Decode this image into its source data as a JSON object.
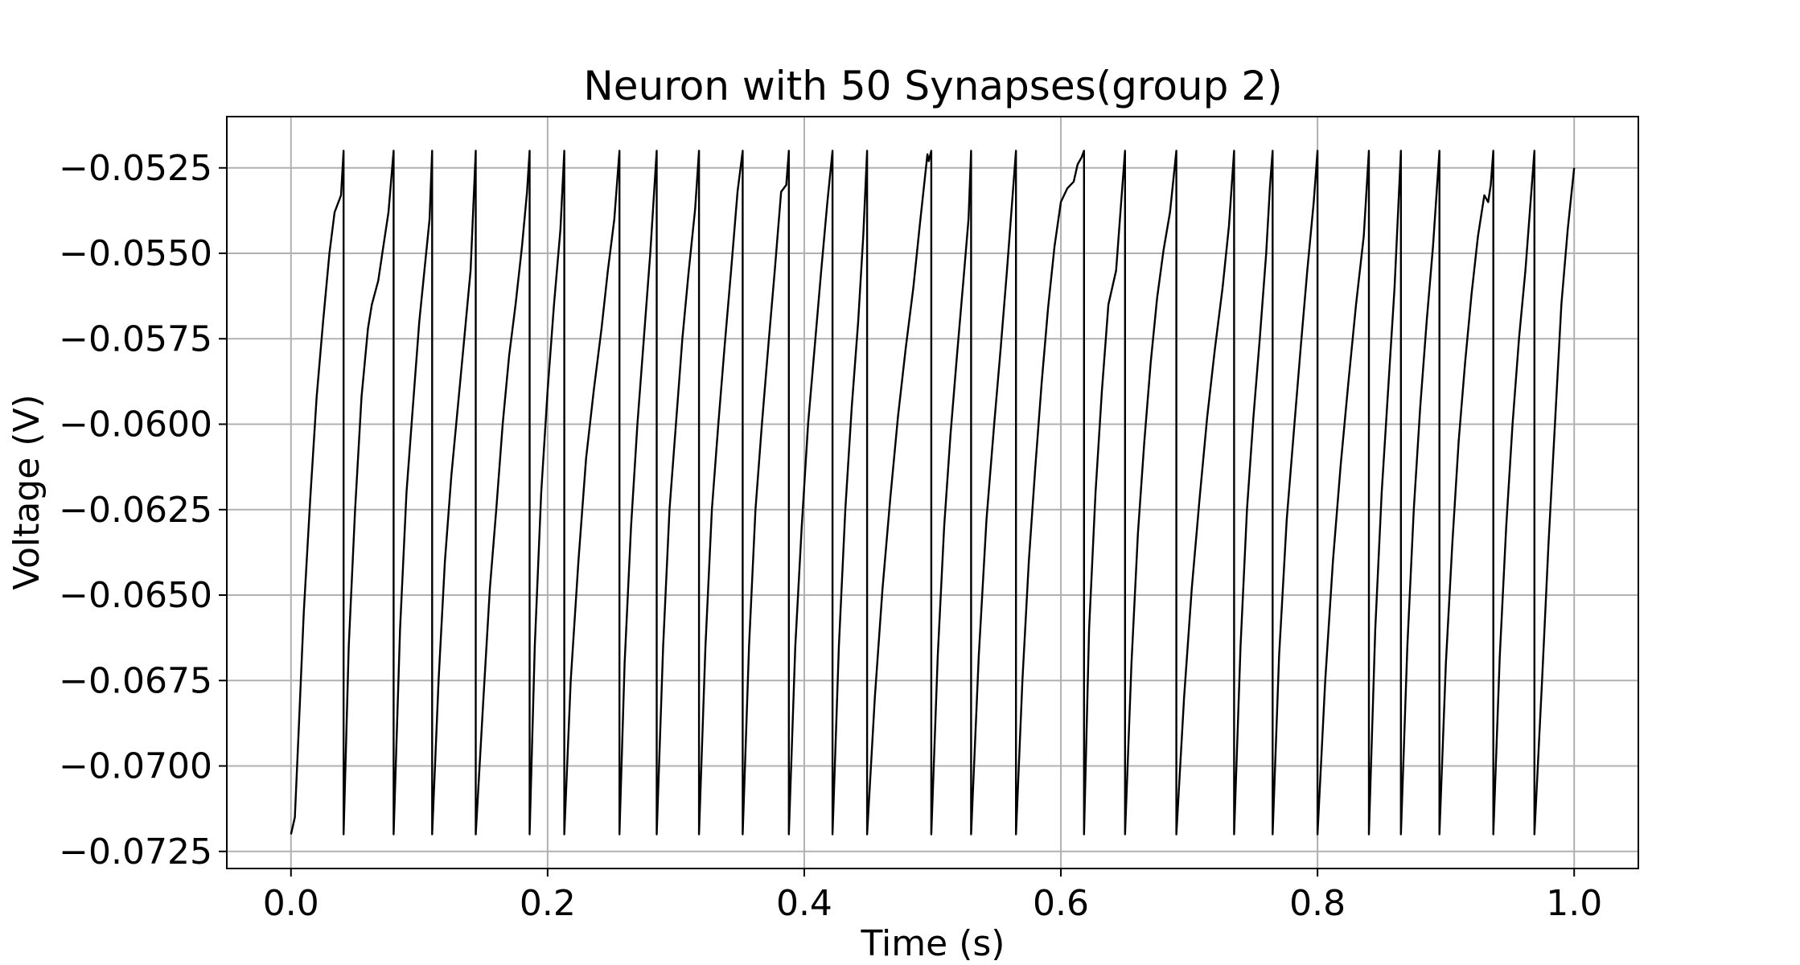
{
  "chart_data": {
    "type": "line",
    "title": "Neuron with 50 Synapses(group 2)",
    "xlabel": "Time (s)",
    "ylabel": "Voltage (V)",
    "xlim": [
      -0.05,
      1.05
    ],
    "ylim": [
      -0.073,
      -0.051
    ],
    "grid": true,
    "x_ticks": [
      0.0,
      0.2,
      0.4,
      0.6,
      0.8,
      1.0
    ],
    "x_tick_labels": [
      "0.0",
      "0.2",
      "0.4",
      "0.6",
      "0.8",
      "1.0"
    ],
    "y_ticks": [
      -0.0525,
      -0.055,
      -0.0575,
      -0.06,
      -0.0625,
      -0.065,
      -0.0675,
      -0.07,
      -0.0725
    ],
    "y_tick_labels": [
      "−0.0525",
      "−0.0550",
      "−0.0575",
      "−0.0600",
      "−0.0625",
      "−0.0650",
      "−0.0675",
      "−0.0700",
      "−0.0725"
    ],
    "line_color": "#000000",
    "reset_voltage": -0.072,
    "threshold_voltage": -0.052,
    "end_point": {
      "x": 1.0,
      "y": -0.0525
    },
    "spike_times": [
      0.041,
      0.08,
      0.11,
      0.144,
      0.186,
      0.213,
      0.256,
      0.285,
      0.318,
      0.352,
      0.388,
      0.422,
      0.449,
      0.499,
      0.53,
      0.565,
      0.618,
      0.65,
      0.69,
      0.735,
      0.765,
      0.8,
      0.84,
      0.865,
      0.895,
      0.937,
      0.969
    ],
    "series": [
      {
        "values": [
          [
            0.0,
            -0.072
          ],
          [
            0.003,
            -0.0715
          ],
          [
            0.006,
            -0.069
          ],
          [
            0.01,
            -0.0655
          ],
          [
            0.015,
            -0.0622
          ],
          [
            0.02,
            -0.0592
          ],
          [
            0.025,
            -0.057
          ],
          [
            0.03,
            -0.055
          ],
          [
            0.034,
            -0.0538
          ],
          [
            0.037,
            -0.0535
          ],
          [
            0.039,
            -0.0533
          ],
          [
            0.041,
            -0.052
          ],
          [
            0.041,
            -0.072
          ],
          [
            0.045,
            -0.0665
          ],
          [
            0.05,
            -0.0625
          ],
          [
            0.055,
            -0.0592
          ],
          [
            0.06,
            -0.0572
          ],
          [
            0.063,
            -0.0565
          ],
          [
            0.068,
            -0.0558
          ],
          [
            0.072,
            -0.0548
          ],
          [
            0.076,
            -0.0538
          ],
          [
            0.08,
            -0.052
          ],
          [
            0.08,
            -0.072
          ],
          [
            0.085,
            -0.066
          ],
          [
            0.09,
            -0.062
          ],
          [
            0.095,
            -0.0595
          ],
          [
            0.1,
            -0.057
          ],
          [
            0.104,
            -0.0555
          ],
          [
            0.108,
            -0.054
          ],
          [
            0.11,
            -0.052
          ],
          [
            0.11,
            -0.072
          ],
          [
            0.115,
            -0.0675
          ],
          [
            0.12,
            -0.064
          ],
          [
            0.125,
            -0.0615
          ],
          [
            0.13,
            -0.0595
          ],
          [
            0.135,
            -0.0575
          ],
          [
            0.14,
            -0.0555
          ],
          [
            0.144,
            -0.052
          ],
          [
            0.144,
            -0.072
          ],
          [
            0.15,
            -0.068
          ],
          [
            0.155,
            -0.0648
          ],
          [
            0.16,
            -0.0625
          ],
          [
            0.165,
            -0.06
          ],
          [
            0.17,
            -0.058
          ],
          [
            0.175,
            -0.0565
          ],
          [
            0.18,
            -0.0548
          ],
          [
            0.184,
            -0.0532
          ],
          [
            0.186,
            -0.052
          ],
          [
            0.186,
            -0.072
          ],
          [
            0.19,
            -0.0665
          ],
          [
            0.195,
            -0.062
          ],
          [
            0.2,
            -0.059
          ],
          [
            0.205,
            -0.0565
          ],
          [
            0.21,
            -0.0543
          ],
          [
            0.213,
            -0.052
          ],
          [
            0.213,
            -0.072
          ],
          [
            0.218,
            -0.0675
          ],
          [
            0.224,
            -0.064
          ],
          [
            0.23,
            -0.061
          ],
          [
            0.236,
            -0.059
          ],
          [
            0.242,
            -0.0572
          ],
          [
            0.247,
            -0.0555
          ],
          [
            0.252,
            -0.054
          ],
          [
            0.256,
            -0.052
          ],
          [
            0.256,
            -0.072
          ],
          [
            0.26,
            -0.067
          ],
          [
            0.265,
            -0.063
          ],
          [
            0.27,
            -0.06
          ],
          [
            0.275,
            -0.0575
          ],
          [
            0.28,
            -0.055
          ],
          [
            0.285,
            -0.052
          ],
          [
            0.285,
            -0.072
          ],
          [
            0.29,
            -0.0665
          ],
          [
            0.295,
            -0.0625
          ],
          [
            0.3,
            -0.06
          ],
          [
            0.305,
            -0.0575
          ],
          [
            0.31,
            -0.0555
          ],
          [
            0.315,
            -0.0537
          ],
          [
            0.318,
            -0.052
          ],
          [
            0.318,
            -0.072
          ],
          [
            0.323,
            -0.0665
          ],
          [
            0.328,
            -0.0625
          ],
          [
            0.333,
            -0.06
          ],
          [
            0.338,
            -0.0577
          ],
          [
            0.343,
            -0.0555
          ],
          [
            0.348,
            -0.0532
          ],
          [
            0.352,
            -0.052
          ],
          [
            0.352,
            -0.072
          ],
          [
            0.357,
            -0.0665
          ],
          [
            0.362,
            -0.0625
          ],
          [
            0.367,
            -0.06
          ],
          [
            0.372,
            -0.0577
          ],
          [
            0.377,
            -0.0555
          ],
          [
            0.382,
            -0.0532
          ],
          [
            0.386,
            -0.053
          ],
          [
            0.388,
            -0.052
          ],
          [
            0.388,
            -0.072
          ],
          [
            0.393,
            -0.0665
          ],
          [
            0.398,
            -0.063
          ],
          [
            0.403,
            -0.06
          ],
          [
            0.408,
            -0.0578
          ],
          [
            0.413,
            -0.0556
          ],
          [
            0.418,
            -0.0535
          ],
          [
            0.422,
            -0.052
          ],
          [
            0.422,
            -0.072
          ],
          [
            0.427,
            -0.0665
          ],
          [
            0.432,
            -0.0625
          ],
          [
            0.437,
            -0.0595
          ],
          [
            0.442,
            -0.057
          ],
          [
            0.446,
            -0.0545
          ],
          [
            0.449,
            -0.052
          ],
          [
            0.449,
            -0.072
          ],
          [
            0.455,
            -0.068
          ],
          [
            0.461,
            -0.0648
          ],
          [
            0.467,
            -0.0622
          ],
          [
            0.473,
            -0.0598
          ],
          [
            0.479,
            -0.0578
          ],
          [
            0.485,
            -0.056
          ],
          [
            0.49,
            -0.0542
          ],
          [
            0.494,
            -0.0528
          ],
          [
            0.496,
            -0.0521
          ],
          [
            0.497,
            -0.0523
          ],
          [
            0.499,
            -0.052
          ],
          [
            0.499,
            -0.072
          ],
          [
            0.504,
            -0.0668
          ],
          [
            0.509,
            -0.063
          ],
          [
            0.514,
            -0.0603
          ],
          [
            0.519,
            -0.058
          ],
          [
            0.524,
            -0.0558
          ],
          [
            0.528,
            -0.054
          ],
          [
            0.53,
            -0.052
          ],
          [
            0.53,
            -0.072
          ],
          [
            0.536,
            -0.0668
          ],
          [
            0.542,
            -0.0628
          ],
          [
            0.548,
            -0.06
          ],
          [
            0.553,
            -0.0578
          ],
          [
            0.558,
            -0.0555
          ],
          [
            0.562,
            -0.0535
          ],
          [
            0.565,
            -0.052
          ],
          [
            0.565,
            -0.072
          ],
          [
            0.57,
            -0.0675
          ],
          [
            0.575,
            -0.064
          ],
          [
            0.58,
            -0.0613
          ],
          [
            0.585,
            -0.0588
          ],
          [
            0.59,
            -0.0566
          ],
          [
            0.595,
            -0.0548
          ],
          [
            0.6,
            -0.0535
          ],
          [
            0.605,
            -0.0531
          ],
          [
            0.61,
            -0.0529
          ],
          [
            0.613,
            -0.0524
          ],
          [
            0.616,
            -0.0522
          ],
          [
            0.618,
            -0.052
          ],
          [
            0.618,
            -0.072
          ],
          [
            0.622,
            -0.066
          ],
          [
            0.627,
            -0.062
          ],
          [
            0.632,
            -0.059
          ],
          [
            0.637,
            -0.0565
          ],
          [
            0.643,
            -0.0555
          ],
          [
            0.647,
            -0.0535
          ],
          [
            0.65,
            -0.052
          ],
          [
            0.65,
            -0.072
          ],
          [
            0.655,
            -0.067
          ],
          [
            0.66,
            -0.0632
          ],
          [
            0.665,
            -0.0605
          ],
          [
            0.67,
            -0.0582
          ],
          [
            0.675,
            -0.0563
          ],
          [
            0.68,
            -0.0549
          ],
          [
            0.685,
            -0.0538
          ],
          [
            0.69,
            -0.052
          ],
          [
            0.69,
            -0.072
          ],
          [
            0.696,
            -0.068
          ],
          [
            0.702,
            -0.0648
          ],
          [
            0.708,
            -0.0622
          ],
          [
            0.714,
            -0.0598
          ],
          [
            0.72,
            -0.0578
          ],
          [
            0.726,
            -0.056
          ],
          [
            0.731,
            -0.0542
          ],
          [
            0.735,
            -0.052
          ],
          [
            0.735,
            -0.072
          ],
          [
            0.74,
            -0.0665
          ],
          [
            0.745,
            -0.0625
          ],
          [
            0.75,
            -0.0598
          ],
          [
            0.755,
            -0.0575
          ],
          [
            0.76,
            -0.055
          ],
          [
            0.763,
            -0.053
          ],
          [
            0.765,
            -0.052
          ],
          [
            0.765,
            -0.072
          ],
          [
            0.77,
            -0.0668
          ],
          [
            0.776,
            -0.0628
          ],
          [
            0.782,
            -0.06
          ],
          [
            0.787,
            -0.0577
          ],
          [
            0.792,
            -0.0555
          ],
          [
            0.797,
            -0.0535
          ],
          [
            0.8,
            -0.052
          ],
          [
            0.8,
            -0.072
          ],
          [
            0.806,
            -0.0675
          ],
          [
            0.812,
            -0.064
          ],
          [
            0.818,
            -0.0612
          ],
          [
            0.824,
            -0.0588
          ],
          [
            0.83,
            -0.0565
          ],
          [
            0.836,
            -0.0545
          ],
          [
            0.84,
            -0.052
          ],
          [
            0.84,
            -0.072
          ],
          [
            0.845,
            -0.066
          ],
          [
            0.85,
            -0.062
          ],
          [
            0.855,
            -0.059
          ],
          [
            0.86,
            -0.056
          ],
          [
            0.865,
            -0.052
          ],
          [
            0.865,
            -0.072
          ],
          [
            0.87,
            -0.0665
          ],
          [
            0.875,
            -0.0625
          ],
          [
            0.88,
            -0.0595
          ],
          [
            0.885,
            -0.057
          ],
          [
            0.89,
            -0.0548
          ],
          [
            0.895,
            -0.052
          ],
          [
            0.895,
            -0.072
          ],
          [
            0.9,
            -0.067
          ],
          [
            0.905,
            -0.0635
          ],
          [
            0.91,
            -0.0605
          ],
          [
            0.915,
            -0.0582
          ],
          [
            0.92,
            -0.0562
          ],
          [
            0.925,
            -0.0545
          ],
          [
            0.93,
            -0.0533
          ],
          [
            0.933,
            -0.0535
          ],
          [
            0.935,
            -0.053
          ],
          [
            0.937,
            -0.052
          ],
          [
            0.937,
            -0.072
          ],
          [
            0.942,
            -0.0668
          ],
          [
            0.947,
            -0.063
          ],
          [
            0.952,
            -0.06
          ],
          [
            0.957,
            -0.0575
          ],
          [
            0.962,
            -0.0555
          ],
          [
            0.966,
            -0.0535
          ],
          [
            0.969,
            -0.052
          ],
          [
            0.969,
            -0.072
          ],
          [
            0.975,
            -0.0675
          ],
          [
            0.98,
            -0.0635
          ],
          [
            0.985,
            -0.06
          ],
          [
            0.99,
            -0.0565
          ],
          [
            0.995,
            -0.0543
          ],
          [
            1.0,
            -0.0525
          ]
        ]
      }
    ]
  }
}
